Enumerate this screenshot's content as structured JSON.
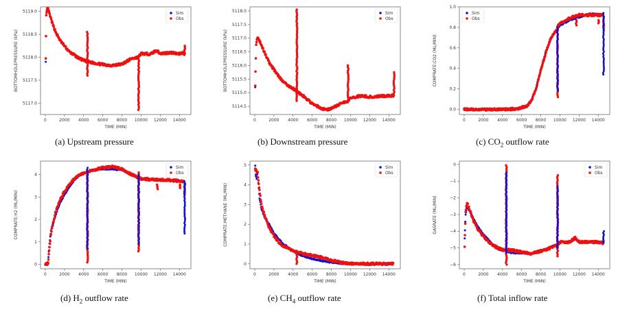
{
  "figure": {
    "marker_colors": {
      "sim": "#1010d0",
      "obs": "#ee1111"
    },
    "legend": [
      "Sim",
      "Obs"
    ]
  },
  "chart_data": [
    {
      "id": "a",
      "type": "scatter",
      "caption_prefix": "(a) Upstream pressure",
      "caption_sub": "",
      "caption_suffix": "",
      "xlabel": "TIME (MIN)",
      "ylabel": "BOTTOMHOLEPRESSURE (kPa)",
      "xlim": [
        -500,
        15200
      ],
      "ylim": [
        5116.75,
        5119.1
      ],
      "xticks": [
        0,
        2000,
        4000,
        6000,
        8000,
        10000,
        12000,
        14000
      ],
      "yticks": [
        5117.0,
        5117.5,
        5118.0,
        5118.5,
        5119.0
      ],
      "ytick_labels": [
        "5117.0",
        "5117.5",
        "5118.0",
        "5118.5",
        "5119.0"
      ],
      "legend": "top-right",
      "series": [
        {
          "name": "Sim",
          "x": [
            50
          ],
          "y": [
            5117.9
          ]
        },
        {
          "name": "Obs",
          "x": [
            50,
            100,
            200,
            300,
            500,
            800,
            1200,
            1600,
            2000,
            2500,
            3000,
            3500,
            4000,
            4400,
            5000,
            6000,
            7000,
            8000,
            9000,
            9700,
            10000,
            11000,
            11600,
            12000,
            13000,
            14000,
            14500
          ],
          "y": [
            5118.0,
            5118.9,
            5119.05,
            5119.05,
            5118.9,
            5118.7,
            5118.5,
            5118.35,
            5118.25,
            5118.12,
            5118.05,
            5117.98,
            5117.93,
            5117.9,
            5117.88,
            5117.84,
            5117.82,
            5117.85,
            5117.97,
            5118.0,
            5118.08,
            5118.07,
            5118.15,
            5118.08,
            5118.1,
            5118.08,
            5118.1
          ]
        },
        {
          "name": "Obs-spikes",
          "x": [
            4400,
            9750,
            14550
          ],
          "ymin": [
            5117.6,
            5116.85,
            5118.05
          ],
          "ymax": [
            5118.55,
            5118.0,
            5118.25
          ]
        }
      ]
    },
    {
      "id": "b",
      "type": "scatter",
      "caption_prefix": "(b) Downstream pressure",
      "caption_sub": "",
      "caption_suffix": "",
      "xlabel": "TIME (MIN)",
      "ylabel": "BOTTOMHOLEPRESSURE (kPa)",
      "xlim": [
        -500,
        15200
      ],
      "ylim": [
        5114.2,
        5118.15
      ],
      "xticks": [
        0,
        2000,
        4000,
        6000,
        8000,
        10000,
        12000,
        14000
      ],
      "yticks": [
        5114.5,
        5115.0,
        5115.5,
        5116.0,
        5116.5,
        5117.0,
        5117.5,
        5118.0
      ],
      "ytick_labels": [
        "5114.5",
        "5115.0",
        "5115.5",
        "5116.0",
        "5116.5",
        "5117.0",
        "5117.5",
        "5118.0"
      ],
      "legend": "top-right",
      "series": [
        {
          "name": "Sim",
          "x": [
            50
          ],
          "y": [
            5115.2
          ]
        },
        {
          "name": "Obs",
          "x": [
            50,
            150,
            300,
            500,
            1000,
            1500,
            2000,
            2500,
            3000,
            3500,
            4000,
            4400,
            5000,
            6000,
            7000,
            7500,
            8000,
            9000,
            9700,
            10000,
            11000,
            12000,
            13000,
            14000,
            14500
          ],
          "y": [
            5115.3,
            5116.8,
            5117.05,
            5116.9,
            5116.5,
            5116.1,
            5115.85,
            5115.6,
            5115.4,
            5115.25,
            5115.15,
            5115.05,
            5114.9,
            5114.6,
            5114.42,
            5114.38,
            5114.42,
            5114.6,
            5114.7,
            5114.8,
            5114.88,
            5114.85,
            5114.87,
            5114.88,
            5114.9
          ]
        },
        {
          "name": "Obs-spikes",
          "x": [
            4400,
            9750,
            14550
          ],
          "ymin": [
            5114.7,
            5114.65,
            5114.9
          ],
          "ymax": [
            5118.05,
            5116.0,
            5115.75
          ]
        }
      ]
    },
    {
      "id": "c",
      "type": "scatter",
      "caption_prefix": "(c) CO",
      "caption_sub": "2",
      "caption_suffix": " outflow rate",
      "xlabel": "TIME (MIN)",
      "ylabel": "COMPRATE:CO2 (ML/MIN)",
      "xlim": [
        -500,
        15200
      ],
      "ylim": [
        -0.05,
        1.0
      ],
      "xticks": [
        0,
        2000,
        4000,
        6000,
        8000,
        10000,
        12000,
        14000
      ],
      "yticks": [
        0.0,
        0.2,
        0.4,
        0.6,
        0.8,
        1.0
      ],
      "ytick_labels": [
        "0.0",
        "0.2",
        "0.4",
        "0.6",
        "0.8",
        "1.0"
      ],
      "legend": "top-left",
      "series": [
        {
          "name": "Sim",
          "x": [
            0,
            2000,
            4000,
            5500,
            6500,
            7000,
            7500,
            8000,
            8500,
            9000,
            9500,
            10000,
            11000,
            12000,
            13000,
            14000,
            14500
          ],
          "y": [
            0.0,
            0.0,
            0.0,
            0.005,
            0.03,
            0.08,
            0.2,
            0.38,
            0.55,
            0.68,
            0.76,
            0.82,
            0.87,
            0.9,
            0.93,
            0.93,
            0.92
          ]
        },
        {
          "name": "Obs",
          "x": [
            0,
            2000,
            4000,
            5500,
            6500,
            7000,
            7500,
            8000,
            8500,
            9000,
            9500,
            10000,
            11000,
            12000,
            13000,
            14000,
            14500
          ],
          "y": [
            0.0,
            0.0,
            0.0,
            0.005,
            0.03,
            0.08,
            0.2,
            0.38,
            0.55,
            0.68,
            0.76,
            0.84,
            0.89,
            0.92,
            0.92,
            0.92,
            0.92
          ]
        },
        {
          "name": "Sim-spikes",
          "x": [
            9750,
            14550
          ],
          "ymin": [
            0.18,
            0.34
          ],
          "ymax": [
            0.8,
            0.94
          ]
        },
        {
          "name": "Obs-spikes",
          "x": [
            9750,
            11700,
            14050,
            14550
          ],
          "ymin": [
            0.12,
            0.82,
            0.84,
            0.77
          ],
          "ymax": [
            0.82,
            0.87,
            0.87,
            0.9
          ]
        }
      ]
    },
    {
      "id": "d",
      "type": "scatter",
      "caption_prefix": "(d) H",
      "caption_sub": "2",
      "caption_suffix": " outflow rate",
      "xlabel": "TIME (MIN)",
      "ylabel": "COMPRATE:H2 (ML/MIN)",
      "xlim": [
        -500,
        15200
      ],
      "ylim": [
        -0.2,
        4.6
      ],
      "xticks": [
        0,
        2000,
        4000,
        6000,
        8000,
        10000,
        12000,
        14000
      ],
      "yticks": [
        0,
        1,
        2,
        3,
        4
      ],
      "ytick_labels": [
        "0",
        "1",
        "2",
        "3",
        "4"
      ],
      "legend": "top-right",
      "series": [
        {
          "name": "Sim",
          "x": [
            0,
            300,
            400,
            600,
            1000,
            1500,
            2000,
            2500,
            3000,
            3500,
            4000,
            5000,
            6000,
            7000,
            8000,
            9000,
            10000,
            11000,
            12000,
            13000,
            14000,
            14500
          ],
          "y": [
            0,
            0.05,
            0.8,
            1.5,
            2.1,
            2.7,
            3.1,
            3.45,
            3.75,
            3.95,
            4.05,
            4.2,
            4.25,
            4.25,
            4.2,
            4.0,
            3.8,
            3.78,
            3.75,
            3.75,
            3.72,
            3.7
          ]
        },
        {
          "name": "Obs",
          "x": [
            0,
            300,
            400,
            600,
            1000,
            1500,
            2000,
            2500,
            3000,
            3500,
            4000,
            5000,
            6000,
            7000,
            8000,
            9000,
            10000,
            11000,
            12000,
            13000,
            14000,
            14500
          ],
          "y": [
            0,
            0.05,
            0.6,
            1.4,
            2.2,
            2.85,
            3.25,
            3.55,
            3.8,
            3.95,
            4.05,
            4.2,
            4.3,
            4.35,
            4.25,
            4.0,
            3.82,
            3.78,
            3.75,
            3.75,
            3.72,
            3.7
          ]
        },
        {
          "name": "Sim-spikes",
          "x": [
            4400,
            9750,
            14550
          ],
          "ymin": [
            0.7,
            0.9,
            1.37
          ],
          "ymax": [
            4.3,
            4.0,
            3.7
          ]
        },
        {
          "name": "Obs-spikes",
          "x": [
            4400,
            9750,
            11700,
            14050,
            14550
          ],
          "ymin": [
            0.08,
            0.58,
            3.35,
            3.4,
            3.1
          ],
          "ymax": [
            4.1,
            4.1,
            3.55,
            3.55,
            3.6
          ]
        }
      ]
    },
    {
      "id": "e",
      "type": "scatter",
      "caption_prefix": "(e) CH",
      "caption_sub": "4",
      "caption_suffix": " outflow rate",
      "xlabel": "TIME (MIN)",
      "ylabel": "COMPRATE:METHANE (ML/MIN)",
      "xlim": [
        -500,
        15200
      ],
      "ylim": [
        -0.25,
        5.2
      ],
      "xticks": [
        0,
        2000,
        4000,
        6000,
        8000,
        10000,
        12000,
        14000
      ],
      "yticks": [
        0,
        1,
        2,
        3,
        4,
        5
      ],
      "ytick_labels": [
        "0",
        "1",
        "2",
        "3",
        "4",
        "5"
      ],
      "legend": "top-right",
      "series": [
        {
          "name": "Sim",
          "x": [
            50,
            100,
            200,
            300,
            500,
            700,
            1000,
            1500,
            2000,
            2500,
            3000,
            4000,
            5000,
            6000,
            7000,
            8000,
            9000,
            10000,
            12000,
            14500
          ],
          "y": [
            5.0,
            4.5,
            4.3,
            4.6,
            3.3,
            2.8,
            2.4,
            2.0,
            1.55,
            1.25,
            1.0,
            0.65,
            0.4,
            0.25,
            0.15,
            0.07,
            0.02,
            0.0,
            0.0,
            0.0
          ]
        },
        {
          "name": "Obs",
          "x": [
            50,
            100,
            200,
            300,
            500,
            700,
            1000,
            1500,
            2000,
            2500,
            3000,
            4000,
            5000,
            6000,
            7000,
            8000,
            9000,
            10000,
            12000,
            14500
          ],
          "y": [
            4.8,
            4.75,
            4.7,
            4.6,
            3.7,
            3.0,
            2.5,
            1.85,
            1.4,
            1.1,
            0.9,
            0.65,
            0.52,
            0.42,
            0.32,
            0.18,
            0.07,
            0.02,
            0.0,
            0.0
          ]
        },
        {
          "name": "Obs-spikes",
          "x": [
            4400
          ],
          "ymin": [
            0.0
          ],
          "ymax": [
            0.6
          ]
        }
      ]
    },
    {
      "id": "f",
      "type": "scatter",
      "caption_prefix": "(f) Total inflow rate",
      "caption_sub": "",
      "caption_suffix": "",
      "xlabel": "TIME (MIN)",
      "ylabel": "GASRATE (ML/MIN)",
      "xlim": [
        -500,
        15200
      ],
      "ylim": [
        -6.25,
        0.2
      ],
      "xticks": [
        0,
        2000,
        4000,
        6000,
        8000,
        10000,
        12000,
        14000
      ],
      "yticks": [
        -6,
        -5,
        -4,
        -3,
        -2,
        -1,
        0
      ],
      "ytick_labels": [
        "−6",
        "−5",
        "−4",
        "−3",
        "−2",
        "−1",
        "0"
      ],
      "legend": "top-right",
      "series": [
        {
          "name": "Sim",
          "x": [
            50,
            150,
            300,
            500,
            1000,
            1500,
            2000,
            2500,
            3000,
            3500,
            4000,
            5000,
            6000,
            7000,
            8000,
            9000,
            9700,
            10000,
            11000,
            11600,
            12000,
            13000,
            14000,
            14500
          ],
          "y": [
            -4.4,
            -3.0,
            -2.5,
            -2.7,
            -3.3,
            -3.8,
            -4.2,
            -4.5,
            -4.8,
            -5.05,
            -5.15,
            -5.3,
            -5.3,
            -5.35,
            -5.2,
            -4.95,
            -4.8,
            -4.65,
            -4.65,
            -4.45,
            -4.65,
            -4.65,
            -4.65,
            -4.65
          ]
        },
        {
          "name": "Obs",
          "x": [
            50,
            150,
            300,
            500,
            1000,
            1500,
            2000,
            2500,
            3000,
            3500,
            4000,
            5000,
            6000,
            7000,
            8000,
            9000,
            9700,
            10000,
            11000,
            11600,
            12000,
            13000,
            14000,
            14500
          ],
          "y": [
            -5.0,
            -2.8,
            -2.3,
            -2.6,
            -3.4,
            -3.95,
            -4.3,
            -4.6,
            -4.85,
            -5.0,
            -5.1,
            -5.15,
            -5.25,
            -5.35,
            -5.2,
            -5.0,
            -4.85,
            -4.65,
            -4.65,
            -4.4,
            -4.65,
            -4.65,
            -4.65,
            -4.7
          ]
        },
        {
          "name": "Sim-spikes",
          "x": [
            4400,
            9750,
            14550
          ],
          "ymin": [
            -5.3,
            -5.0,
            -4.7
          ],
          "ymax": [
            -0.5,
            -1.3,
            -4.0
          ]
        },
        {
          "name": "Obs-spikes",
          "x": [
            4400,
            9750
          ],
          "ymin": [
            -6.0,
            -5.5
          ],
          "ymax": [
            -0.05,
            -0.65
          ]
        }
      ]
    }
  ]
}
